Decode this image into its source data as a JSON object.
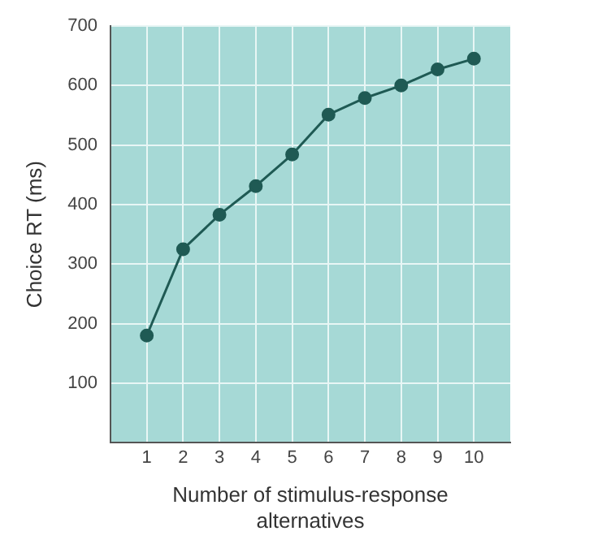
{
  "chart_data": {
    "type": "line",
    "xlabel": "Number of stimulus-response\nalternatives",
    "ylabel": "Choice RT (ms)",
    "x": [
      1,
      2,
      3,
      4,
      5,
      6,
      7,
      8,
      9,
      10
    ],
    "series": [
      {
        "color": "#1f5a54",
        "values": [
          180,
          325,
          383,
          431,
          484,
          551,
          579,
          600,
          627,
          645
        ]
      }
    ],
    "xlim": [
      0,
      11
    ],
    "xticks": [
      1,
      2,
      3,
      4,
      5,
      6,
      7,
      8,
      9,
      10
    ],
    "ylim": [
      0,
      700
    ],
    "yticks": [
      100,
      200,
      300,
      400,
      500,
      600,
      700
    ],
    "grid": true,
    "legend": false,
    "marker": "circle",
    "line_style": "solid"
  }
}
